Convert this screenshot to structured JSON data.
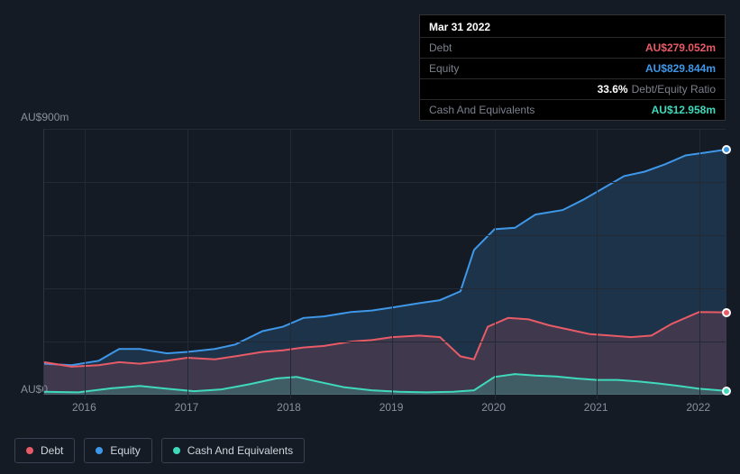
{
  "tooltip": {
    "date": "Mar 31 2022",
    "rows": [
      {
        "label": "Debt",
        "value": "AU$279.052m",
        "color": "#e85b66"
      },
      {
        "label": "Equity",
        "value": "AU$829.844m",
        "color": "#3e97e8"
      },
      {
        "label": "",
        "ratio_value": "33.6%",
        "ratio_label": "Debt/Equity Ratio"
      },
      {
        "label": "Cash And Equivalents",
        "value": "AU$12.958m",
        "color": "#3fd9bb"
      }
    ]
  },
  "chart": {
    "type": "area",
    "background_color": "#151b24",
    "grid_color": "#232a35",
    "axis_color": "#2e3440",
    "label_color": "#8a909c",
    "label_fontsize": 12,
    "y_top_label": "AU$900m",
    "y_bottom_label": "AU$0",
    "ymin": 0,
    "ymax": 900,
    "x_labels": [
      "2016",
      "2017",
      "2018",
      "2019",
      "2020",
      "2021",
      "2022"
    ],
    "x_positions_pct": [
      6,
      21,
      36,
      51,
      66,
      81,
      96
    ],
    "grid_h_pct": [
      0,
      20,
      40,
      60,
      80
    ],
    "series": [
      {
        "name": "Equity",
        "color": "#3e97e8",
        "fill_opacity": 0.2,
        "line_width": 2,
        "points": [
          [
            0,
            105
          ],
          [
            4,
            100
          ],
          [
            8,
            115
          ],
          [
            11,
            155
          ],
          [
            14,
            155
          ],
          [
            18,
            140
          ],
          [
            21,
            145
          ],
          [
            25,
            155
          ],
          [
            28,
            170
          ],
          [
            32,
            215
          ],
          [
            35,
            230
          ],
          [
            38,
            260
          ],
          [
            41,
            265
          ],
          [
            45,
            280
          ],
          [
            48,
            285
          ],
          [
            51,
            295
          ],
          [
            55,
            310
          ],
          [
            58,
            320
          ],
          [
            61,
            350
          ],
          [
            63,
            490
          ],
          [
            66,
            560
          ],
          [
            69,
            565
          ],
          [
            72,
            610
          ],
          [
            76,
            625
          ],
          [
            79,
            660
          ],
          [
            82,
            700
          ],
          [
            85,
            740
          ],
          [
            88,
            755
          ],
          [
            91,
            780
          ],
          [
            94,
            810
          ],
          [
            97,
            820
          ],
          [
            100,
            830
          ]
        ]
      },
      {
        "name": "Debt",
        "color": "#e85b66",
        "fill_opacity": 0.18,
        "line_width": 2,
        "points": [
          [
            0,
            110
          ],
          [
            4,
            95
          ],
          [
            8,
            100
          ],
          [
            11,
            110
          ],
          [
            14,
            105
          ],
          [
            18,
            115
          ],
          [
            21,
            125
          ],
          [
            25,
            120
          ],
          [
            28,
            130
          ],
          [
            32,
            145
          ],
          [
            35,
            150
          ],
          [
            38,
            160
          ],
          [
            41,
            165
          ],
          [
            45,
            180
          ],
          [
            48,
            185
          ],
          [
            51,
            195
          ],
          [
            55,
            200
          ],
          [
            58,
            195
          ],
          [
            61,
            130
          ],
          [
            63,
            120
          ],
          [
            65,
            230
          ],
          [
            68,
            260
          ],
          [
            71,
            255
          ],
          [
            74,
            235
          ],
          [
            77,
            220
          ],
          [
            80,
            205
          ],
          [
            83,
            200
          ],
          [
            86,
            195
          ],
          [
            89,
            200
          ],
          [
            92,
            240
          ],
          [
            96,
            280
          ],
          [
            100,
            279
          ]
        ]
      },
      {
        "name": "Cash And Equivalents",
        "color": "#3fd9bb",
        "fill_opacity": 0.22,
        "line_width": 2,
        "points": [
          [
            0,
            10
          ],
          [
            5,
            8
          ],
          [
            10,
            22
          ],
          [
            14,
            30
          ],
          [
            18,
            20
          ],
          [
            22,
            12
          ],
          [
            26,
            18
          ],
          [
            30,
            35
          ],
          [
            34,
            55
          ],
          [
            37,
            60
          ],
          [
            40,
            45
          ],
          [
            44,
            25
          ],
          [
            48,
            15
          ],
          [
            52,
            10
          ],
          [
            56,
            8
          ],
          [
            60,
            10
          ],
          [
            63,
            15
          ],
          [
            66,
            60
          ],
          [
            69,
            70
          ],
          [
            72,
            65
          ],
          [
            75,
            62
          ],
          [
            78,
            55
          ],
          [
            81,
            50
          ],
          [
            84,
            50
          ],
          [
            87,
            45
          ],
          [
            90,
            38
          ],
          [
            93,
            30
          ],
          [
            96,
            20
          ],
          [
            100,
            13
          ]
        ]
      }
    ],
    "end_markers": [
      {
        "series": "Equity",
        "color": "#3e97e8"
      },
      {
        "series": "Debt",
        "color": "#e85b66"
      },
      {
        "series": "Cash And Equivalents",
        "color": "#3fd9bb"
      }
    ]
  },
  "legend": {
    "items": [
      {
        "label": "Debt",
        "color": "#e85b66"
      },
      {
        "label": "Equity",
        "color": "#3e97e8"
      },
      {
        "label": "Cash And Equivalents",
        "color": "#3fd9bb"
      }
    ]
  }
}
